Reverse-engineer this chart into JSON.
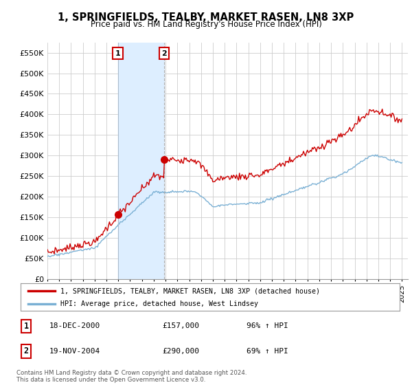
{
  "title": "1, SPRINGFIELDS, TEALBY, MARKET RASEN, LN8 3XP",
  "subtitle": "Price paid vs. HM Land Registry's House Price Index (HPI)",
  "ylim": [
    0,
    575000
  ],
  "yticks": [
    0,
    50000,
    100000,
    150000,
    200000,
    250000,
    300000,
    350000,
    400000,
    450000,
    500000,
    550000
  ],
  "ytick_labels": [
    "£0",
    "£50K",
    "£100K",
    "£150K",
    "£200K",
    "£250K",
    "£300K",
    "£350K",
    "£400K",
    "£450K",
    "£500K",
    "£550K"
  ],
  "xlim_start": 1995.0,
  "xlim_end": 2025.5,
  "red_line_color": "#cc0000",
  "blue_line_color": "#7ab0d4",
  "shade_color": "#ddeeff",
  "sale1_x": 2000.96,
  "sale1_y": 157000,
  "sale2_x": 2004.88,
  "sale2_y": 290000,
  "legend_line1": "1, SPRINGFIELDS, TEALBY, MARKET RASEN, LN8 3XP (detached house)",
  "legend_line2": "HPI: Average price, detached house, West Lindsey",
  "table_row1": [
    "1",
    "18-DEC-2000",
    "£157,000",
    "96% ↑ HPI"
  ],
  "table_row2": [
    "2",
    "19-NOV-2004",
    "£290,000",
    "69% ↑ HPI"
  ],
  "footnote1": "Contains HM Land Registry data © Crown copyright and database right 2024.",
  "footnote2": "This data is licensed under the Open Government Licence v3.0.",
  "background_color": "#ffffff",
  "grid_color": "#cccccc"
}
